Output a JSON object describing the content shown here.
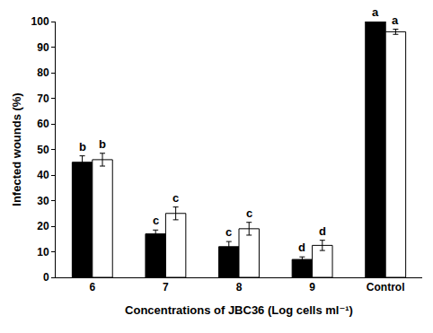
{
  "chart_data": {
    "type": "bar",
    "x_label": "Concentrations of JBC36 (Log cells ml⁻¹)",
    "y_label": "Infected wounds (%)",
    "categories": [
      "6",
      "7",
      "8",
      "9",
      "Control"
    ],
    "series": [
      {
        "color": "#000000",
        "values": [
          45,
          17,
          12,
          7,
          100
        ],
        "errors": [
          2.5,
          1.5,
          2,
          1,
          0
        ],
        "letters": [
          "b",
          "c",
          "c",
          "d",
          "a"
        ]
      },
      {
        "color": "#ffffff",
        "values": [
          46,
          25,
          19,
          12.5,
          96
        ],
        "errors": [
          2.5,
          2.5,
          2.5,
          2,
          1
        ],
        "letters": [
          "b",
          "c",
          "c",
          "d",
          "a"
        ]
      }
    ],
    "ylim": [
      0,
      100
    ],
    "yticks": [
      0,
      10,
      20,
      30,
      40,
      50,
      60,
      70,
      80,
      90,
      100
    ],
    "grid": false
  }
}
